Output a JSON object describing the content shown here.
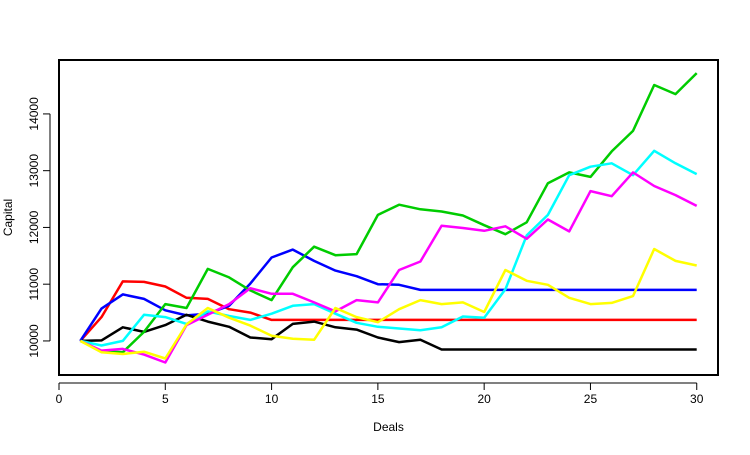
{
  "chart_data": {
    "type": "line",
    "title": "",
    "xlabel": "Deals",
    "ylabel": "Capital",
    "xlim": [
      0,
      31
    ],
    "ylim": [
      9400,
      14950
    ],
    "x_ticks": [
      0,
      5,
      10,
      15,
      20,
      25,
      30
    ],
    "y_ticks": [
      10000,
      11000,
      12000,
      13000,
      14000
    ],
    "grid": false,
    "legend": "none",
    "x": [
      1,
      2,
      3,
      4,
      5,
      6,
      7,
      8,
      9,
      10,
      11,
      12,
      13,
      14,
      15,
      16,
      17,
      18,
      19,
      20,
      21,
      22,
      23,
      24,
      25,
      26,
      27,
      28,
      29,
      30
    ],
    "series": [
      {
        "color": "#ff0000",
        "values": [
          10000,
          10420,
          11050,
          11040,
          10960,
          10760,
          10740,
          10560,
          10500,
          10370,
          10370,
          10370,
          10370,
          10370,
          10370,
          10370,
          10370,
          10370,
          10370,
          10370,
          10370,
          10370,
          10370,
          10370,
          10370,
          10370,
          10370,
          10370,
          10370,
          10370
        ]
      },
      {
        "color": "#0000ff",
        "values": [
          10000,
          10570,
          10820,
          10740,
          10540,
          10450,
          10480,
          10620,
          11010,
          11470,
          11610,
          11410,
          11240,
          11140,
          11000,
          10990,
          10900,
          10900,
          10900,
          10900,
          10900,
          10900,
          10900,
          10900,
          10900,
          10900,
          10900,
          10900,
          10900,
          10900
        ]
      },
      {
        "color": "#000000",
        "values": [
          10000,
          10010,
          10240,
          10160,
          10280,
          10460,
          10340,
          10250,
          10060,
          10030,
          10300,
          10340,
          10240,
          10200,
          10060,
          9980,
          10020,
          9850,
          9850,
          9850,
          9850,
          9850,
          9850,
          9850,
          9850,
          9850,
          9850,
          9850,
          9850,
          9850
        ]
      },
      {
        "color": "#00cc00",
        "values": [
          10000,
          9820,
          9800,
          10160,
          10650,
          10580,
          11270,
          11120,
          10890,
          10720,
          11300,
          11660,
          11510,
          11530,
          12220,
          12400,
          12320,
          12280,
          12210,
          12040,
          11880,
          12090,
          12780,
          12970,
          12890,
          13340,
          13700,
          14510,
          14350,
          14720
        ]
      },
      {
        "color": "#00ffff",
        "values": [
          10000,
          9920,
          10000,
          10460,
          10420,
          10300,
          10520,
          10440,
          10370,
          10480,
          10620,
          10650,
          10480,
          10320,
          10250,
          10220,
          10190,
          10240,
          10430,
          10410,
          10910,
          11860,
          12220,
          12920,
          13070,
          13130,
          12920,
          13350,
          13130,
          12940
        ]
      },
      {
        "color": "#ff00ff",
        "values": [
          10000,
          9830,
          9860,
          9760,
          9620,
          10280,
          10460,
          10650,
          10930,
          10830,
          10830,
          10680,
          10520,
          10720,
          10680,
          11250,
          11400,
          12030,
          11990,
          11940,
          12020,
          11800,
          12140,
          11930,
          12640,
          12550,
          12970,
          12730,
          12570,
          12380
        ]
      },
      {
        "color": "#ffff00",
        "values": [
          10000,
          9800,
          9770,
          9810,
          9690,
          10290,
          10580,
          10410,
          10270,
          10090,
          10040,
          10020,
          10580,
          10420,
          10330,
          10560,
          10720,
          10650,
          10680,
          10510,
          11250,
          11060,
          10990,
          10760,
          10650,
          10670,
          10790,
          11620,
          11410,
          11330
        ]
      }
    ]
  }
}
